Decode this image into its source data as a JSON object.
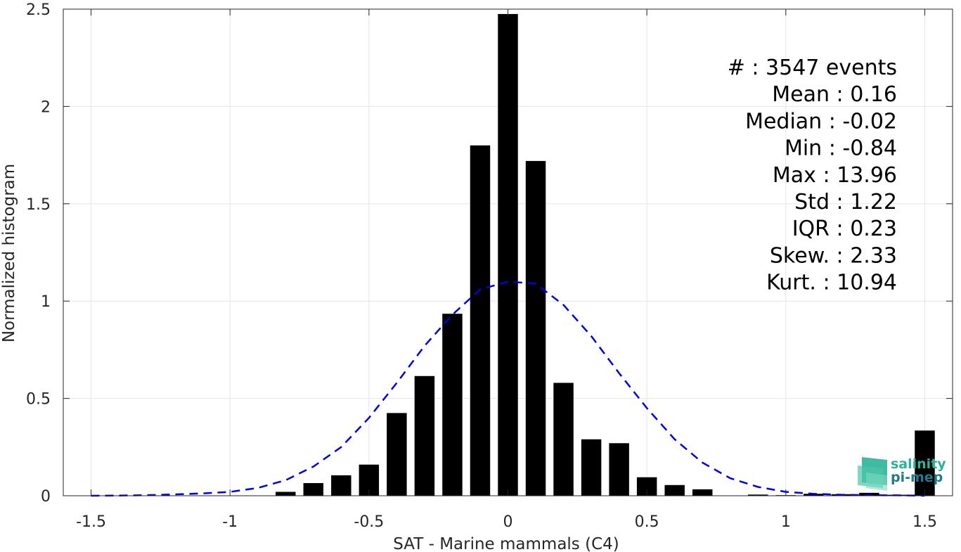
{
  "chart_data": {
    "type": "bar",
    "xlabel": "SAT - Marine mammals (C4)",
    "ylabel": "Normalized histogram",
    "xlim": [
      -1.6,
      1.6
    ],
    "ylim": [
      0,
      2.5
    ],
    "xticks": [
      -1.5,
      -1,
      -0.5,
      0,
      0.5,
      1,
      1.5
    ],
    "xtick_labels": [
      "-1.5",
      "-1",
      "-0.5",
      "0",
      "0.5",
      "1",
      "1.5"
    ],
    "yticks": [
      0,
      0.5,
      1,
      1.5,
      2,
      2.5
    ],
    "ytick_labels": [
      "0",
      "0.5",
      "1",
      "1.5",
      "2",
      "2.5"
    ],
    "grid": true,
    "bar_color": "#000000",
    "bars": {
      "x": [
        -1.5,
        -1.4,
        -1.3,
        -1.2,
        -1.1,
        -1.0,
        -0.9,
        -0.8,
        -0.7,
        -0.6,
        -0.5,
        -0.4,
        -0.3,
        -0.2,
        -0.1,
        0.0,
        0.1,
        0.2,
        0.3,
        0.4,
        0.5,
        0.6,
        0.7,
        0.8,
        0.9,
        1.0,
        1.1,
        1.2,
        1.3,
        1.4,
        1.5
      ],
      "values": [
        0,
        0,
        0,
        0,
        0,
        0,
        0,
        0.02,
        0.065,
        0.105,
        0.16,
        0.425,
        0.615,
        0.935,
        1.8,
        2.475,
        1.72,
        0.58,
        0.29,
        0.27,
        0.095,
        0.055,
        0.033,
        0,
        0.006,
        0.003,
        0.01,
        0.008,
        0.015,
        0.005,
        0.335
      ]
    },
    "fit_curve": {
      "style": "dashed",
      "color": "#0000e6",
      "x": [
        -1.5,
        -1.4,
        -1.3,
        -1.2,
        -1.1,
        -1.0,
        -0.9,
        -0.8,
        -0.7,
        -0.6,
        -0.5,
        -0.4,
        -0.3,
        -0.2,
        -0.1,
        0.0,
        0.1,
        0.2,
        0.3,
        0.4,
        0.5,
        0.6,
        0.7,
        0.8,
        0.9,
        1.0,
        1.1,
        1.2,
        1.3,
        1.4,
        1.5
      ],
      "y": [
        0.0,
        0.001,
        0.003,
        0.007,
        0.012,
        0.02,
        0.04,
        0.08,
        0.15,
        0.25,
        0.4,
        0.58,
        0.77,
        0.93,
        1.06,
        1.1,
        1.09,
        0.98,
        0.82,
        0.63,
        0.45,
        0.29,
        0.17,
        0.09,
        0.045,
        0.02,
        0.01,
        0.005,
        0.003,
        0.002,
        0.0
      ]
    },
    "annotations": [
      "#  : 3547 events",
      "Mean : 0.16",
      "Median : -0.02",
      "Min : -0.84",
      "Max : 13.96",
      "Std : 1.22",
      "IQR : 0.23",
      "Skew. : 2.33",
      "Kurt. : 10.94"
    ]
  },
  "logo": {
    "line1": "salinity",
    "line2": "pi-mep",
    "colors": [
      "#2bb39a",
      "#1f7a8c"
    ]
  }
}
